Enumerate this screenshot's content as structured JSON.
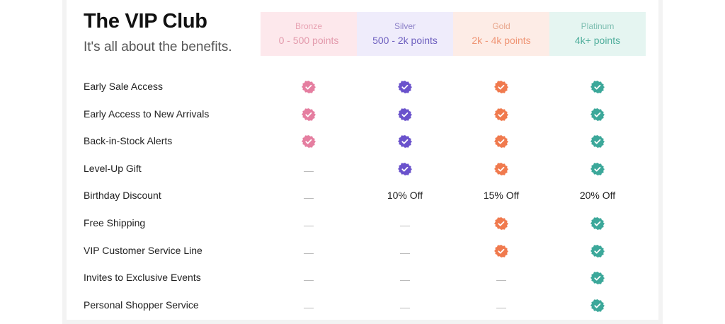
{
  "header": {
    "title": "The VIP Club",
    "subtitle": "It's all about the benefits."
  },
  "tiers": [
    {
      "name": "Bronze",
      "points": "0 - 500 points",
      "bg": "#fde8ec",
      "name_color": "#e8a3b3",
      "points_color": "#e39aac",
      "badge_color": "#e57ea0"
    },
    {
      "name": "Silver",
      "points": "500 - 2k points",
      "bg": "#efecfb",
      "name_color": "#8c80c8",
      "points_color": "#6d5fbf",
      "badge_color": "#6a52cc"
    },
    {
      "name": "Gold",
      "points": "2k - 4k points",
      "bg": "#fdece6",
      "name_color": "#e8a68c",
      "points_color": "#ef9575",
      "badge_color": "#f07a4e"
    },
    {
      "name": "Platinum",
      "points": "4k+ points",
      "bg": "#e5f5f1",
      "name_color": "#7fbfb2",
      "points_color": "#4fae9c",
      "badge_color": "#3ca89a"
    }
  ],
  "benefits": [
    {
      "label": "Early Sale Access",
      "values": [
        "check",
        "check",
        "check",
        "check"
      ]
    },
    {
      "label": "Early Access to New Arrivals",
      "values": [
        "check",
        "check",
        "check",
        "check"
      ]
    },
    {
      "label": "Back-in-Stock Alerts",
      "values": [
        "check",
        "check",
        "check",
        "check"
      ]
    },
    {
      "label": "Level-Up Gift",
      "values": [
        "none",
        "check",
        "check",
        "check"
      ]
    },
    {
      "label": "Birthday Discount",
      "values": [
        "none",
        "10% Off",
        "15% Off",
        "20% Off"
      ]
    },
    {
      "label": "Free Shipping",
      "values": [
        "none",
        "none",
        "check",
        "check"
      ]
    },
    {
      "label": "VIP Customer Service Line",
      "values": [
        "none",
        "none",
        "check",
        "check"
      ]
    },
    {
      "label": "Invites to Exclusive Events",
      "values": [
        "none",
        "none",
        "none",
        "check"
      ]
    },
    {
      "label": "Personal Shopper Service",
      "values": [
        "none",
        "none",
        "none",
        "check"
      ]
    }
  ]
}
